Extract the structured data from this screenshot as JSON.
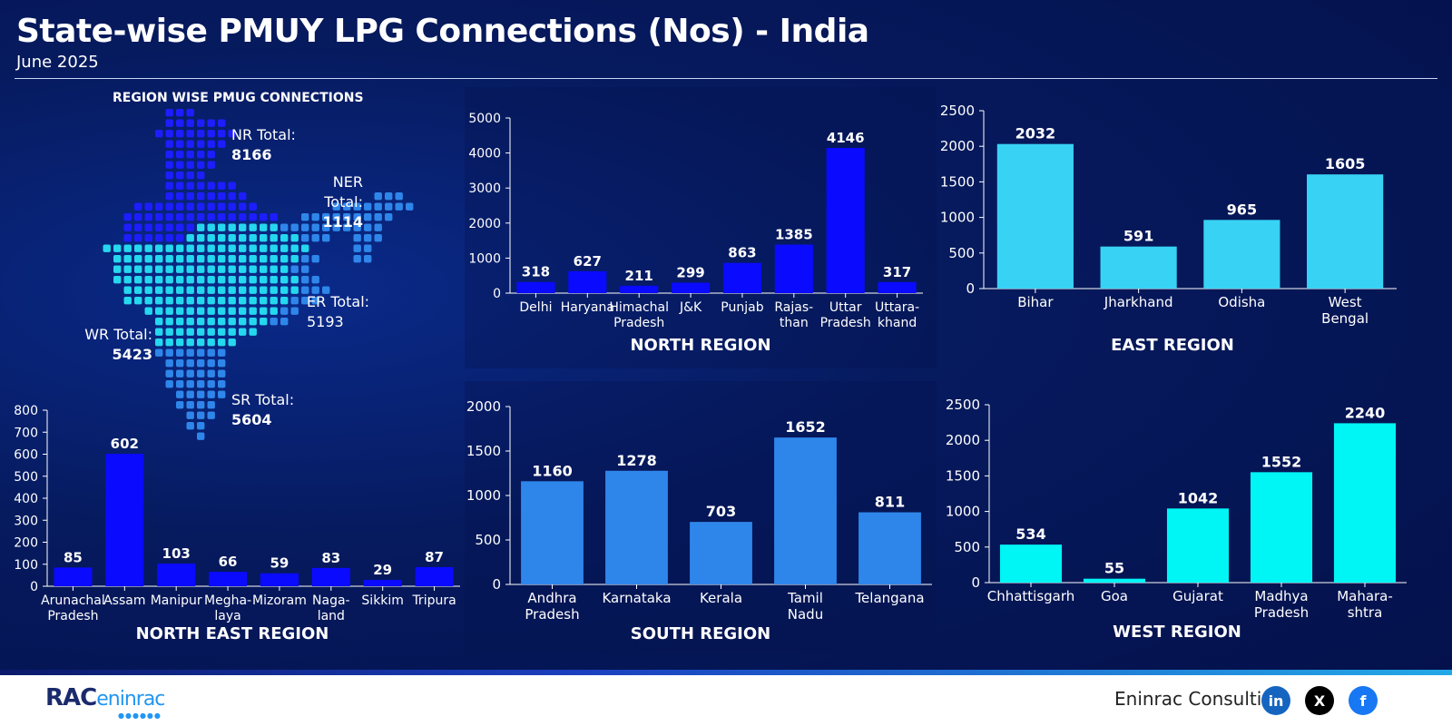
{
  "header": {
    "title": "State-wise PMUY LPG Connections (Nos) - India",
    "subtitle": "June 2025"
  },
  "map": {
    "title": "REGION WISE PMUG CONNECTIONS",
    "regions": [
      {
        "id": "nr",
        "label": "NR Total:",
        "value": "8166"
      },
      {
        "id": "ner",
        "label": "NER Total:",
        "value": "1114"
      },
      {
        "id": "er",
        "label": "ER Total:",
        "value": "5193"
      },
      {
        "id": "wr",
        "label": "WR Total:",
        "value": "5423"
      },
      {
        "id": "sr",
        "label": "SR Total:",
        "value": "5604"
      }
    ]
  },
  "colors": {
    "north": "#0a0aff",
    "east": "#38d2f5",
    "south": "#2f86ea",
    "west": "#00f5f5",
    "northeast": "#0a0aff"
  },
  "chart_data": [
    {
      "id": "north",
      "type": "bar",
      "title": "NORTH REGION",
      "categories": [
        "Delhi",
        "Haryana",
        "Himachal Pradesh",
        "J&K",
        "Punjab",
        "Rajas-than",
        "Uttar Pradesh",
        "Uttara-khand"
      ],
      "values": [
        318,
        627,
        211,
        299,
        863,
        1385,
        4146,
        317
      ],
      "ylim": [
        0,
        5000
      ],
      "yticks": [
        0,
        1000,
        2000,
        3000,
        4000,
        5000
      ]
    },
    {
      "id": "east",
      "type": "bar",
      "title": "EAST REGION",
      "categories": [
        "Bihar",
        "Jharkhand",
        "Odisha",
        "West Bengal"
      ],
      "values": [
        2032,
        591,
        965,
        1605
      ],
      "ylim": [
        0,
        2500
      ],
      "yticks": [
        0,
        500,
        1000,
        1500,
        2000,
        2500
      ]
    },
    {
      "id": "northeast",
      "type": "bar",
      "title": "NORTH EAST REGION",
      "categories": [
        "Arunachal Pradesh",
        "Assam",
        "Manipur",
        "Megha-laya",
        "Mizoram",
        "Naga-land",
        "Sikkim",
        "Tripura"
      ],
      "values": [
        85,
        602,
        103,
        66,
        59,
        83,
        29,
        87
      ],
      "ylim": [
        0,
        800
      ],
      "yticks": [
        0,
        100,
        200,
        300,
        400,
        500,
        600,
        700,
        800
      ]
    },
    {
      "id": "south",
      "type": "bar",
      "title": "SOUTH REGION",
      "categories": [
        "Andhra Pradesh",
        "Karnataka",
        "Kerala",
        "Tamil Nadu",
        "Telangana"
      ],
      "values": [
        1160,
        1278,
        703,
        1652,
        811
      ],
      "ylim": [
        0,
        2000
      ],
      "yticks": [
        0,
        500,
        1000,
        1500,
        2000
      ]
    },
    {
      "id": "west",
      "type": "bar",
      "title": "WEST REGION",
      "categories": [
        "Chhattisgarh",
        "Goa",
        "Gujarat",
        "Madhya Pradesh",
        "Mahara-shtra"
      ],
      "values": [
        534,
        55,
        1042,
        1552,
        2240
      ],
      "ylim": [
        0,
        2500
      ],
      "yticks": [
        0,
        500,
        1000,
        1500,
        2000,
        2500
      ]
    }
  ],
  "footer": {
    "logo_text": "RAC",
    "logo_sub": "eninrac",
    "brand": "Eninrac Consulting",
    "social": [
      {
        "icon": "linkedin-icon",
        "glyph": "in",
        "color": "#1565c0"
      },
      {
        "icon": "x-icon",
        "glyph": "X",
        "color": "#000000"
      },
      {
        "icon": "facebook-icon",
        "glyph": "f",
        "color": "#1877f2"
      }
    ]
  }
}
